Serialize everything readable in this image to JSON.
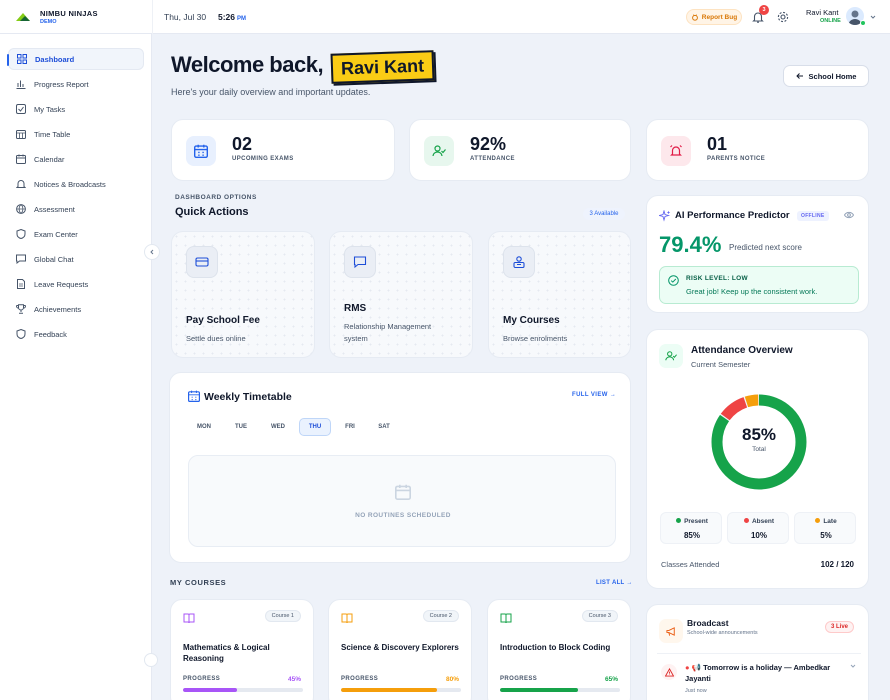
{
  "header": {
    "brand": "NIMBU NINJAS",
    "brand_sub": "DEMO",
    "date": "Thu, Jul 30",
    "time": "5:26",
    "ampm": "PM",
    "report_bug": "Report Bug",
    "notifications": "3",
    "user_name": "Ravi Kant",
    "user_status": "ONLINE"
  },
  "sidebar": {
    "items": [
      {
        "label": "Dashboard",
        "icon": "grid-icon",
        "active": true
      },
      {
        "label": "Progress Report",
        "icon": "bar-chart-icon"
      },
      {
        "label": "My Tasks",
        "icon": "checkbox-icon"
      },
      {
        "label": "Time Table",
        "icon": "calendar-grid-icon"
      },
      {
        "label": "Calendar",
        "icon": "calendar-icon"
      },
      {
        "label": "Notices & Broadcasts",
        "icon": "bell-icon"
      },
      {
        "label": "Assessment",
        "icon": "globe-icon"
      },
      {
        "label": "Exam Center",
        "icon": "shield-icon"
      },
      {
        "label": "Global Chat",
        "icon": "chat-icon"
      },
      {
        "label": "Leave Requests",
        "icon": "document-icon"
      },
      {
        "label": "Achievements",
        "icon": "trophy-icon"
      },
      {
        "label": "Feedback",
        "icon": "shield-icon"
      }
    ]
  },
  "welcome": {
    "greeting": "Welcome back,",
    "name": "Ravi Kant",
    "subtitle": "Here's your daily overview and important updates.",
    "school_home": "School Home"
  },
  "stats": [
    {
      "value": "02",
      "label": "UPCOMING EXAMS",
      "color": "#2563eb",
      "bg": "#e8f0fe"
    },
    {
      "value": "92%",
      "label": "ATTENDANCE",
      "color": "#16a34a",
      "bg": "#e7f7ee"
    },
    {
      "value": "01",
      "label": "PARENTS NOTICE",
      "color": "#e11d48",
      "bg": "#fde8ec"
    }
  ],
  "quick_actions": {
    "kicker": "DASHBOARD OPTIONS",
    "title": "Quick Actions",
    "available": "3 Available",
    "items": [
      {
        "title": "Pay School Fee",
        "sub": "Settle dues online"
      },
      {
        "title": "RMS",
        "sub": "Relationship Management system"
      },
      {
        "title": "My Courses",
        "sub": "Browse enrolments"
      }
    ]
  },
  "timetable": {
    "title": "Weekly Timetable",
    "full_view": "FULL VIEW",
    "days": [
      "MON",
      "TUE",
      "WED",
      "THU",
      "FRI",
      "SAT"
    ],
    "active_day": "THU",
    "empty": "NO ROUTINES SCHEDULED"
  },
  "my_courses": {
    "kicker": "MY COURSES",
    "list_all": "LIST ALL",
    "progress_label": "PROGRESS",
    "items": [
      {
        "chip": "Course 1",
        "title": "Mathematics & Logical Reasoning",
        "progress": "45%",
        "fraction": 0.45,
        "color": "#a855f7"
      },
      {
        "chip": "Course 2",
        "title": "Science & Discovery Explorers",
        "progress": "80%",
        "fraction": 0.8,
        "color": "#f59e0b"
      },
      {
        "chip": "Course 3",
        "title": "Introduction to Block Coding",
        "progress": "65%",
        "fraction": 0.65,
        "color": "#16a34a"
      }
    ]
  },
  "ai": {
    "title": "AI Performance Predictor",
    "badge": "OFFLINE",
    "score": "79.4%",
    "score_label": "Predicted next score",
    "risk_title": "RISK LEVEL: LOW",
    "risk_text": "Great job! Keep up the consistent work."
  },
  "attendance": {
    "title": "Attendance Overview",
    "sub": "Current Semester",
    "total_value": "85%",
    "total_label": "Total",
    "segments": [
      {
        "name": "Present",
        "value": "85%",
        "fraction": 0.85,
        "color": "#16a34a"
      },
      {
        "name": "Absent",
        "value": "10%",
        "fraction": 0.1,
        "color": "#ef4444"
      },
      {
        "name": "Late",
        "value": "5%",
        "fraction": 0.05,
        "color": "#f59e0b"
      }
    ],
    "classes_label": "Classes Attended",
    "classes_value": "102 / 120"
  },
  "broadcast": {
    "title": "Broadcast",
    "sub": "School-wide announcements",
    "live": "3 Live",
    "item_text": "Tomorrow is a holiday — Ambedkar Jayanti",
    "item_time": "Just now"
  }
}
